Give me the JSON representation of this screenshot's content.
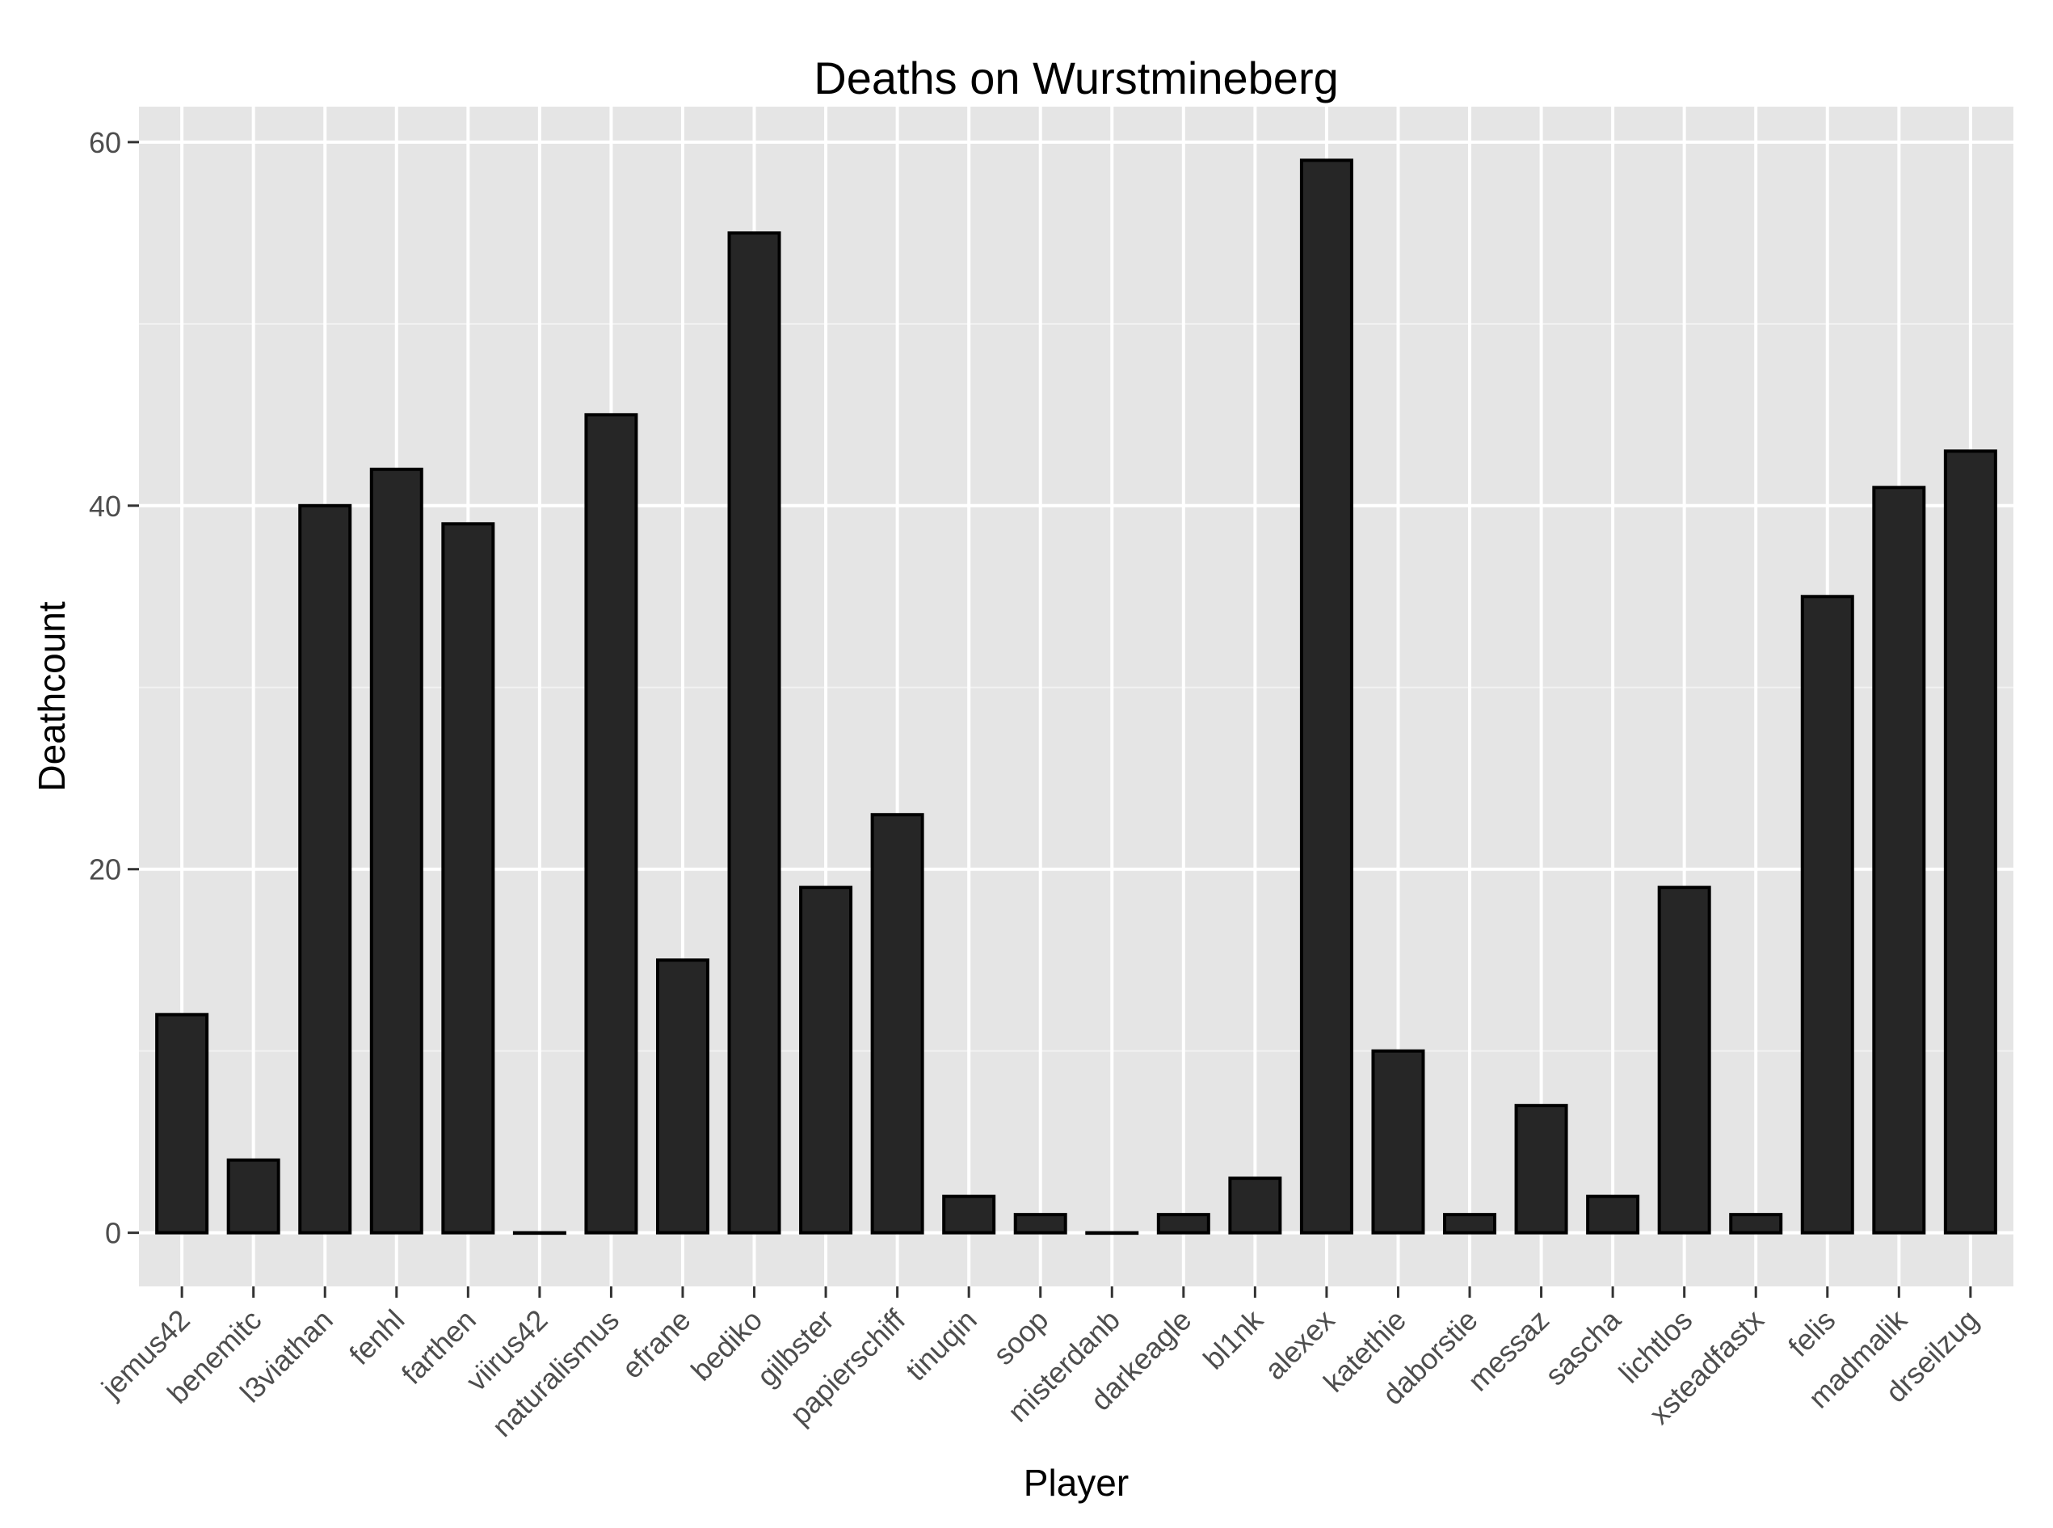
{
  "chart_data": {
    "type": "bar",
    "title": "Deaths on Wurstmineberg",
    "xlabel": "Player",
    "ylabel": "Deathcount",
    "categories": [
      "jemus42",
      "benemitc",
      "l3viathan",
      "fenhl",
      "farthen",
      "viirus42",
      "naturalismus",
      "efrane",
      "bediko",
      "gilbster",
      "papierschiff",
      "tinuqin",
      "soop",
      "misterdanb",
      "darkeagle",
      "bl1nk",
      "alexex",
      "katethie",
      "daborstie",
      "messaz",
      "sascha",
      "lichtlos",
      "xsteadfastx",
      "felis",
      "madmalik",
      "drseilzug"
    ],
    "values": [
      12,
      4,
      40,
      42,
      39,
      0,
      45,
      15,
      55,
      19,
      23,
      2,
      1,
      0,
      1,
      3,
      59,
      10,
      1,
      7,
      2,
      19,
      1,
      35,
      41,
      43
    ],
    "ylim": [
      -2.95,
      61.95
    ],
    "yticks": [
      0,
      20,
      40,
      60
    ],
    "grid": true,
    "legend": "none",
    "colors": {
      "panel_background": "#e5e5e5",
      "grid_major": "#ffffff",
      "grid_minor": "#f2f2f2",
      "bar_fill": "#262626",
      "bar_stroke": "#000000",
      "tick_label": "#4d4d4d"
    }
  }
}
